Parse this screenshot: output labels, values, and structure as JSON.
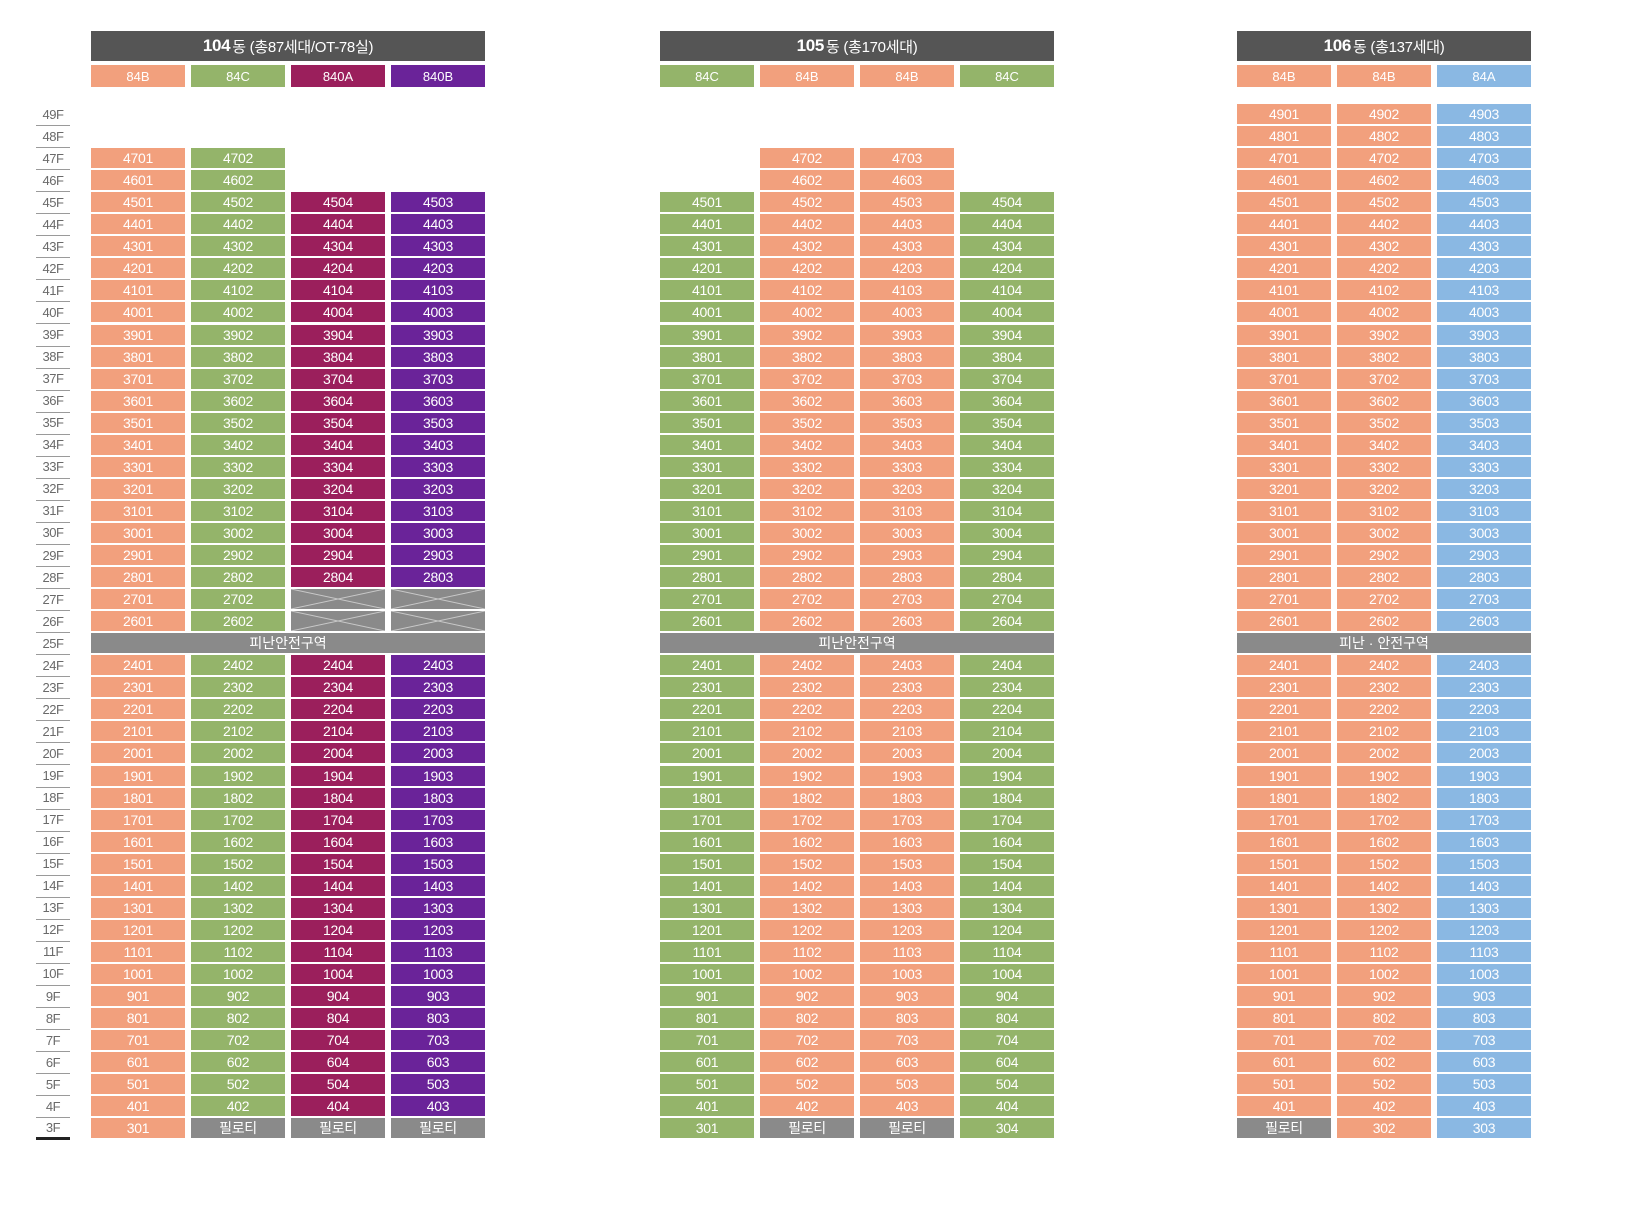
{
  "floors": [
    "49F",
    "48F",
    "47F",
    "46F",
    "45F",
    "44F",
    "43F",
    "42F",
    "41F",
    "40F",
    "39F",
    "38F",
    "37F",
    "36F",
    "35F",
    "34F",
    "33F",
    "32F",
    "31F",
    "30F",
    "29F",
    "28F",
    "27F",
    "26F",
    "25F",
    "24F",
    "23F",
    "22F",
    "21F",
    "20F",
    "19F",
    "18F",
    "17F",
    "16F",
    "15F",
    "14F",
    "13F",
    "12F",
    "11F",
    "10F",
    "9F",
    "8F",
    "7F",
    "6F",
    "5F",
    "4F",
    "3F"
  ],
  "colors": {
    "84B": "#f2a07d",
    "84C": "#94b46a",
    "84A": "#8ab8e3",
    "84OA": "#9b1f5c",
    "84OB": "#6a2399",
    "gray": "#8a8a8a",
    "header": "#555555"
  },
  "pilotis_label": "필로티",
  "buildings": [
    {
      "id": "104",
      "title_num": "104",
      "title_rest": "동 (총87세대/OT-78실)",
      "refuge_label": "피난안전구역",
      "columns": [
        {
          "type": "84B",
          "color_key": "84B",
          "line": "01",
          "top": 47,
          "bottom": "unit",
          "skip": []
        },
        {
          "type": "84C",
          "color_key": "84C",
          "line": "02",
          "top": 47,
          "bottom": "pilotis",
          "skip": []
        },
        {
          "type": "840A",
          "color_key": "84OA",
          "line": "04",
          "top": 45,
          "bottom": "pilotis",
          "skip": [
            26,
            27
          ]
        },
        {
          "type": "840B",
          "color_key": "84OB",
          "line": "03",
          "top": 45,
          "bottom": "pilotis",
          "skip": [
            26,
            27
          ]
        }
      ]
    },
    {
      "id": "105",
      "title_num": "105",
      "title_rest": "동 (총170세대)",
      "refuge_label": "피난안전구역",
      "columns": [
        {
          "type": "84C",
          "color_key": "84C",
          "line": "01",
          "top": 45,
          "bottom": "unit",
          "skip": []
        },
        {
          "type": "84B",
          "color_key": "84B",
          "line": "02",
          "top": 47,
          "bottom": "pilotis",
          "skip": []
        },
        {
          "type": "84B",
          "color_key": "84B",
          "line": "03",
          "top": 47,
          "bottom": "pilotis",
          "skip": []
        },
        {
          "type": "84C",
          "color_key": "84C",
          "line": "04",
          "top": 45,
          "bottom": "unit",
          "skip": []
        }
      ]
    },
    {
      "id": "106",
      "title_num": "106",
      "title_rest": "동 (총137세대)",
      "refuge_label": "피난 · 안전구역",
      "columns": [
        {
          "type": "84B",
          "color_key": "84B",
          "line": "01",
          "top": 49,
          "bottom": "pilotis",
          "skip": []
        },
        {
          "type": "84B",
          "color_key": "84B",
          "line": "02",
          "top": 49,
          "bottom": "unit",
          "skip": []
        },
        {
          "type": "84A",
          "color_key": "84A",
          "line": "03",
          "top": 49,
          "bottom": "unit",
          "skip": []
        }
      ]
    }
  ]
}
